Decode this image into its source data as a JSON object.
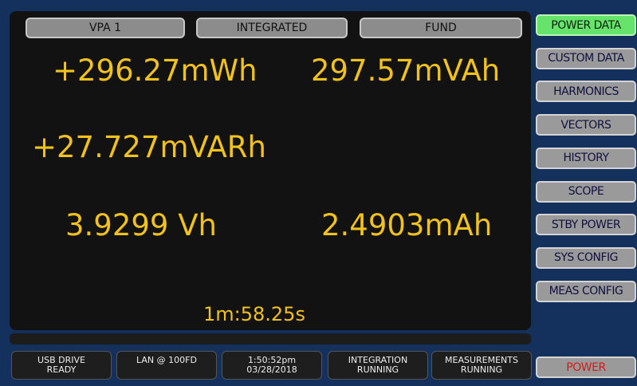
{
  "tabs": [
    "VPA 1",
    "INTEGRATED",
    "FUND"
  ],
  "readings": [
    "+296.27mWh",
    "297.57mVAh",
    "+27.727mVARh",
    "3.9299 Vh",
    "2.4903mAh"
  ],
  "elapsed": "1m:58.25s",
  "status": [
    [
      "USB DRIVE",
      "READY"
    ],
    [
      "LAN @ 100FD"
    ],
    [
      "1:50:52pm",
      "03/28/2018"
    ],
    [
      "INTEGRATION",
      "RUNNING"
    ],
    [
      "MEASUREMENTS",
      "RUNNING"
    ]
  ],
  "menu": [
    "POWER DATA",
    "CUSTOM DATA",
    "HARMONICS",
    "VECTORS",
    "HISTORY",
    "SCOPE",
    "STBY POWER",
    "SYS CONFIG",
    "MEAS CONFIG"
  ],
  "power": "POWER"
}
